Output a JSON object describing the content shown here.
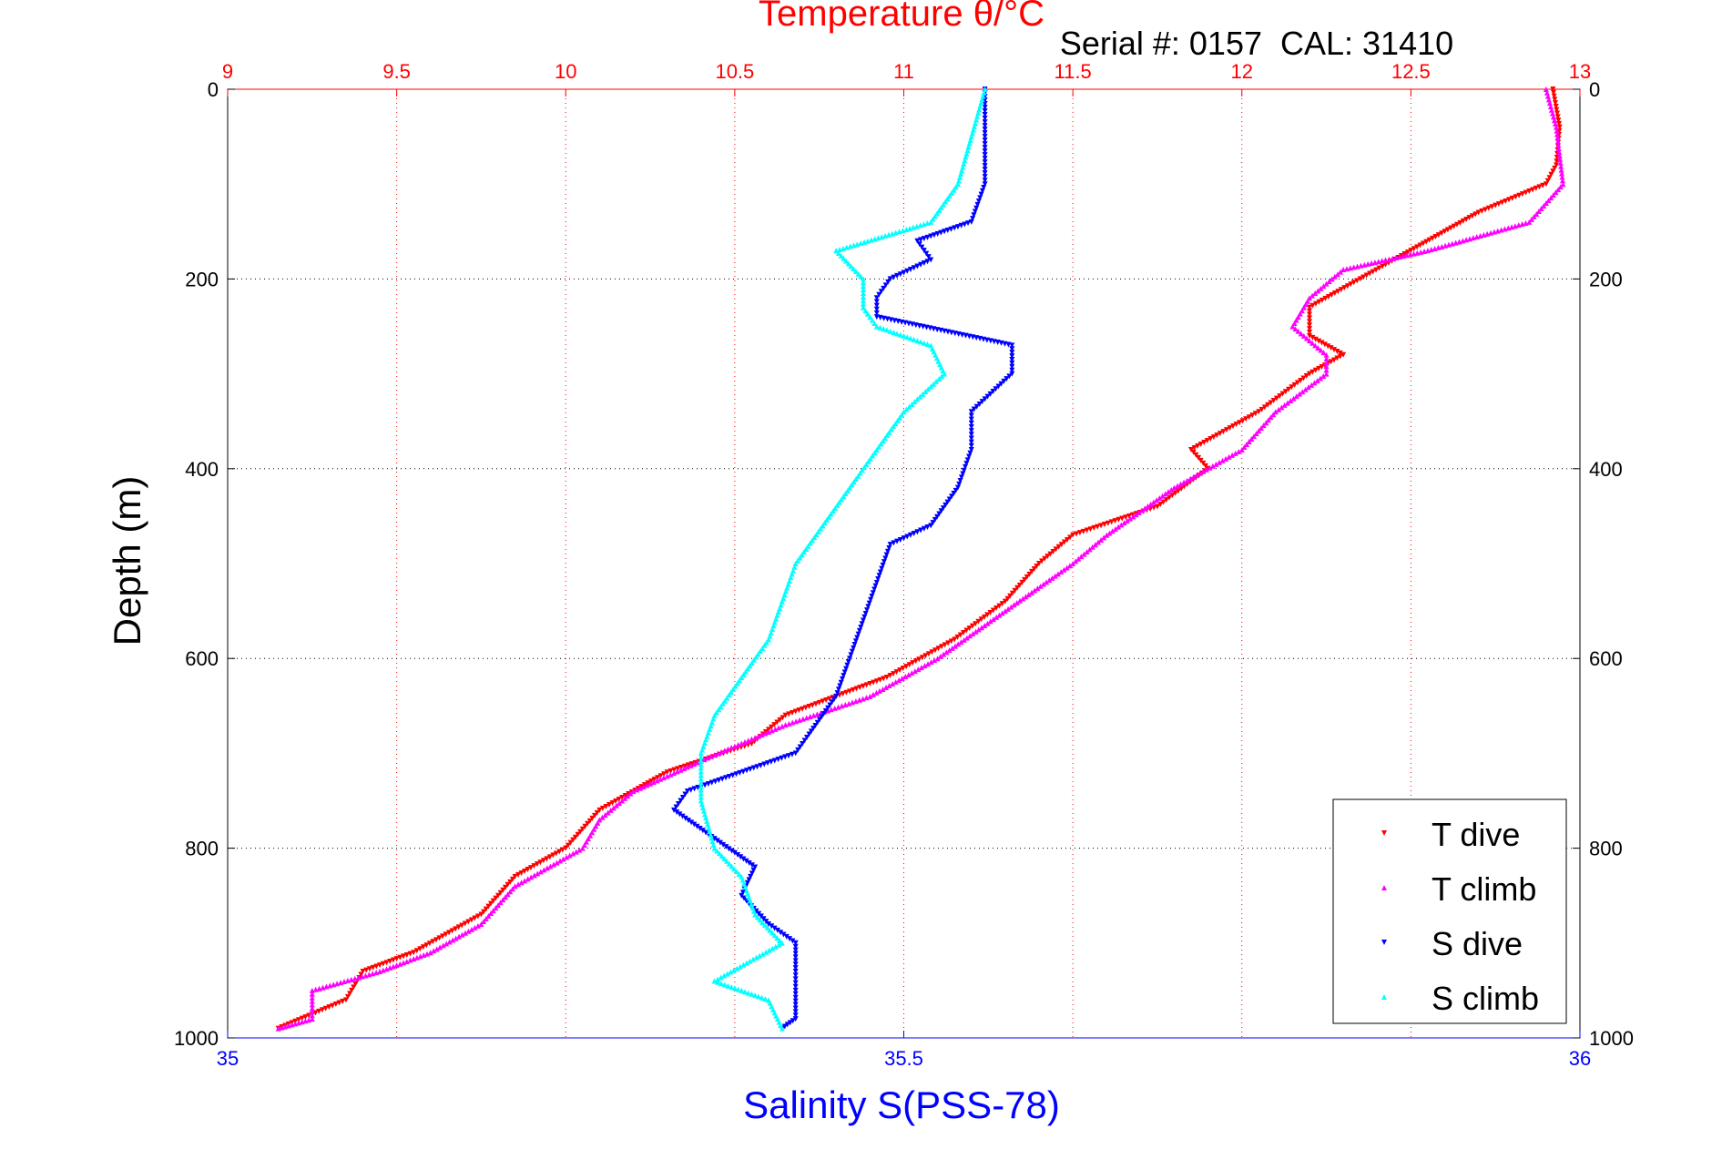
{
  "chart_data": {
    "type": "scatter",
    "title": "Temperature θ/°C",
    "subtitle": "Serial #: 0157  CAL: 31410",
    "ylabel": "Depth (m)",
    "xlabel": "Salinity S(PSS-78)",
    "x_top": {
      "label": "Temperature θ/°C",
      "lim": [
        9,
        13
      ],
      "ticks": [
        "9",
        "9.5",
        "10",
        "10.5",
        "11",
        "11.5",
        "12",
        "12.5",
        "13"
      ],
      "color": "#ff0000"
    },
    "x_bottom": {
      "label": "Salinity S(PSS-78)",
      "lim": [
        35,
        36
      ],
      "ticks": [
        "35",
        "35.5",
        "36"
      ],
      "color": "#0000ff"
    },
    "y": {
      "lim": [
        0,
        1000
      ],
      "reversed": true,
      "ticks_left": [
        "0",
        "200",
        "400",
        "600",
        "800",
        "1000"
      ],
      "ticks_right": [
        "0",
        "200",
        "400",
        "600",
        "800",
        "1000"
      ]
    },
    "grid": true,
    "legend_position": "bottom-right",
    "series": [
      {
        "name": "T dive",
        "axis": "temperature",
        "color": "#ff0000",
        "marker": "triangle-down",
        "points": [
          [
            0,
            12.92
          ],
          [
            40,
            12.94
          ],
          [
            80,
            12.93
          ],
          [
            100,
            12.9
          ],
          [
            130,
            12.7
          ],
          [
            150,
            12.6
          ],
          [
            170,
            12.5
          ],
          [
            200,
            12.35
          ],
          [
            230,
            12.2
          ],
          [
            260,
            12.2
          ],
          [
            280,
            12.3
          ],
          [
            300,
            12.2
          ],
          [
            340,
            12.05
          ],
          [
            380,
            11.85
          ],
          [
            400,
            11.9
          ],
          [
            440,
            11.75
          ],
          [
            470,
            11.5
          ],
          [
            500,
            11.4
          ],
          [
            540,
            11.3
          ],
          [
            580,
            11.15
          ],
          [
            620,
            10.95
          ],
          [
            660,
            10.65
          ],
          [
            690,
            10.55
          ],
          [
            720,
            10.3
          ],
          [
            760,
            10.1
          ],
          [
            800,
            10
          ],
          [
            830,
            9.85
          ],
          [
            870,
            9.75
          ],
          [
            910,
            9.55
          ],
          [
            930,
            9.4
          ],
          [
            960,
            9.35
          ],
          [
            990,
            9.15
          ]
        ]
      },
      {
        "name": "T climb",
        "axis": "temperature",
        "color": "#ff00ff",
        "marker": "triangle-up",
        "points": [
          [
            0,
            12.9
          ],
          [
            40,
            12.93
          ],
          [
            100,
            12.95
          ],
          [
            140,
            12.85
          ],
          [
            170,
            12.55
          ],
          [
            190,
            12.3
          ],
          [
            220,
            12.2
          ],
          [
            250,
            12.15
          ],
          [
            280,
            12.25
          ],
          [
            300,
            12.25
          ],
          [
            340,
            12.1
          ],
          [
            380,
            12
          ],
          [
            420,
            11.8
          ],
          [
            470,
            11.6
          ],
          [
            500,
            11.5
          ],
          [
            550,
            11.3
          ],
          [
            600,
            11.1
          ],
          [
            640,
            10.9
          ],
          [
            670,
            10.65
          ],
          [
            700,
            10.45
          ],
          [
            740,
            10.2
          ],
          [
            770,
            10.1
          ],
          [
            800,
            10.05
          ],
          [
            840,
            9.85
          ],
          [
            880,
            9.75
          ],
          [
            910,
            9.6
          ],
          [
            930,
            9.45
          ],
          [
            950,
            9.25
          ],
          [
            980,
            9.25
          ],
          [
            990,
            9.15
          ]
        ]
      },
      {
        "name": "S dive",
        "axis": "salinity",
        "color": "#0000ff",
        "marker": "triangle-down",
        "points": [
          [
            0,
            35.56
          ],
          [
            50,
            35.56
          ],
          [
            100,
            35.56
          ],
          [
            140,
            35.55
          ],
          [
            160,
            35.51
          ],
          [
            180,
            35.52
          ],
          [
            200,
            35.49
          ],
          [
            220,
            35.48
          ],
          [
            240,
            35.48
          ],
          [
            270,
            35.58
          ],
          [
            300,
            35.58
          ],
          [
            340,
            35.55
          ],
          [
            380,
            35.55
          ],
          [
            420,
            35.54
          ],
          [
            460,
            35.52
          ],
          [
            480,
            35.49
          ],
          [
            520,
            35.48
          ],
          [
            560,
            35.47
          ],
          [
            600,
            35.46
          ],
          [
            640,
            35.45
          ],
          [
            680,
            35.43
          ],
          [
            700,
            35.42
          ],
          [
            740,
            35.34
          ],
          [
            760,
            35.33
          ],
          [
            790,
            35.36
          ],
          [
            820,
            35.39
          ],
          [
            850,
            35.38
          ],
          [
            880,
            35.4
          ],
          [
            900,
            35.42
          ],
          [
            930,
            35.42
          ],
          [
            950,
            35.42
          ],
          [
            980,
            35.42
          ],
          [
            990,
            35.41
          ]
        ]
      },
      {
        "name": "S climb",
        "axis": "salinity",
        "color": "#00ffff",
        "marker": "triangle-up",
        "points": [
          [
            0,
            35.56
          ],
          [
            50,
            35.55
          ],
          [
            100,
            35.54
          ],
          [
            140,
            35.52
          ],
          [
            170,
            35.45
          ],
          [
            200,
            35.47
          ],
          [
            230,
            35.47
          ],
          [
            250,
            35.48
          ],
          [
            270,
            35.52
          ],
          [
            300,
            35.53
          ],
          [
            340,
            35.5
          ],
          [
            380,
            35.48
          ],
          [
            420,
            35.46
          ],
          [
            460,
            35.44
          ],
          [
            500,
            35.42
          ],
          [
            540,
            35.41
          ],
          [
            580,
            35.4
          ],
          [
            620,
            35.38
          ],
          [
            660,
            35.36
          ],
          [
            700,
            35.35
          ],
          [
            750,
            35.35
          ],
          [
            800,
            35.36
          ],
          [
            830,
            35.38
          ],
          [
            870,
            35.39
          ],
          [
            900,
            35.41
          ],
          [
            940,
            35.36
          ],
          [
            960,
            35.4
          ],
          [
            990,
            35.41
          ]
        ]
      }
    ]
  }
}
